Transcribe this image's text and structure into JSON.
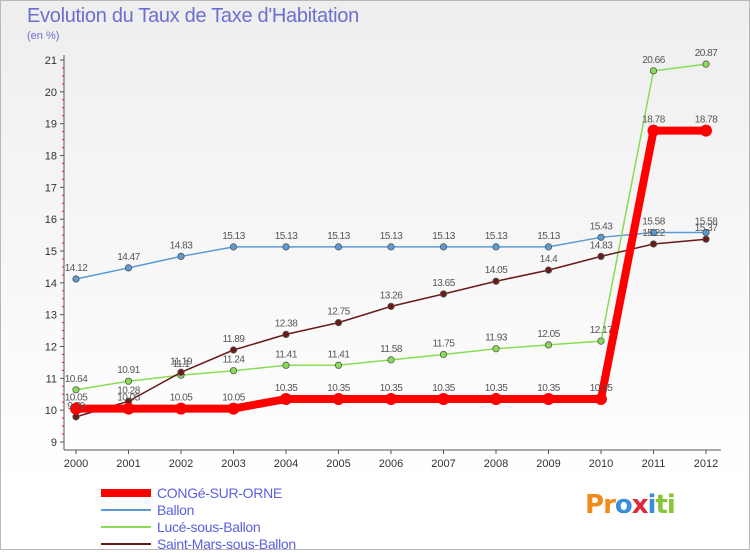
{
  "header": {
    "title": "Evolution du Taux de Taxe d'Habitation",
    "subtitle": "(en %)"
  },
  "logo": {
    "letters": [
      "P",
      "r",
      "o",
      "x",
      "i",
      "t",
      "i"
    ]
  },
  "colors": {
    "logo": [
      "#f08a1c",
      "#f08a1c",
      "#3a8fd8",
      "#e0283a",
      "#3a8fd8",
      "#8bc43a",
      "#8bc43a"
    ]
  },
  "chart_data": {
    "type": "line",
    "title": "Evolution du Taux de Taxe d'Habitation",
    "ylabel": "(en %)",
    "xlabel": "",
    "x": [
      "2000",
      "2001",
      "2002",
      "2003",
      "2004",
      "2005",
      "2006",
      "2007",
      "2008",
      "2009",
      "2010",
      "2011",
      "2012"
    ],
    "ylim": [
      9,
      21
    ],
    "yticks": [
      "9",
      "10",
      "11",
      "12",
      "13",
      "14",
      "15",
      "16",
      "17",
      "18",
      "19",
      "20",
      "21"
    ],
    "grid": false,
    "legend_position": "bottom-left",
    "series": [
      {
        "name": "CONGé-SUR-ORNE",
        "color": "#ff0000",
        "values": [
          10.05,
          10.05,
          10.05,
          10.05,
          10.35,
          10.35,
          10.35,
          10.35,
          10.35,
          10.35,
          10.35,
          18.78,
          18.78
        ],
        "labels": [
          "10.05",
          "10.05",
          "10.05",
          "10.05",
          "10.35",
          "10.35",
          "10.35",
          "10.35",
          "10.35",
          "10.35",
          "10.35",
          "18.78",
          "18.78"
        ]
      },
      {
        "name": "Ballon",
        "color": "#5b9bd5",
        "values": [
          14.12,
          14.47,
          14.83,
          15.13,
          15.13,
          15.13,
          15.13,
          15.13,
          15.13,
          15.13,
          15.43,
          15.58,
          15.58
        ],
        "labels": [
          "14.12",
          "14.47",
          "14.83",
          "15.13",
          "15.13",
          "15.13",
          "15.13",
          "15.13",
          "15.13",
          "15.13",
          "15.43",
          "15.58",
          "15.58"
        ]
      },
      {
        "name": "Lucé-sous-Ballon",
        "color": "#88dd55",
        "values": [
          10.64,
          10.91,
          11.1,
          11.24,
          11.41,
          11.41,
          11.58,
          11.75,
          11.93,
          12.05,
          12.17,
          20.66,
          20.87
        ],
        "labels": [
          "10.64",
          "10.91",
          "11.1",
          "11.24",
          "11.41",
          "11.41",
          "11.58",
          "11.75",
          "11.93",
          "12.05",
          "12.17",
          "20.66",
          "20.87"
        ]
      },
      {
        "name": "Saint-Mars-sous-Ballon",
        "color": "#6b1a1a",
        "values": [
          9.79,
          10.28,
          11.19,
          11.89,
          12.38,
          12.75,
          13.26,
          13.65,
          14.05,
          14.4,
          14.83,
          15.22,
          15.37
        ],
        "labels": [
          "9.79",
          "10.28",
          "11.19",
          "11.89",
          "12.38",
          "12.75",
          "13.26",
          "13.65",
          "14.05",
          "14.4",
          "14.83",
          "15.22",
          "15.37"
        ]
      }
    ]
  }
}
